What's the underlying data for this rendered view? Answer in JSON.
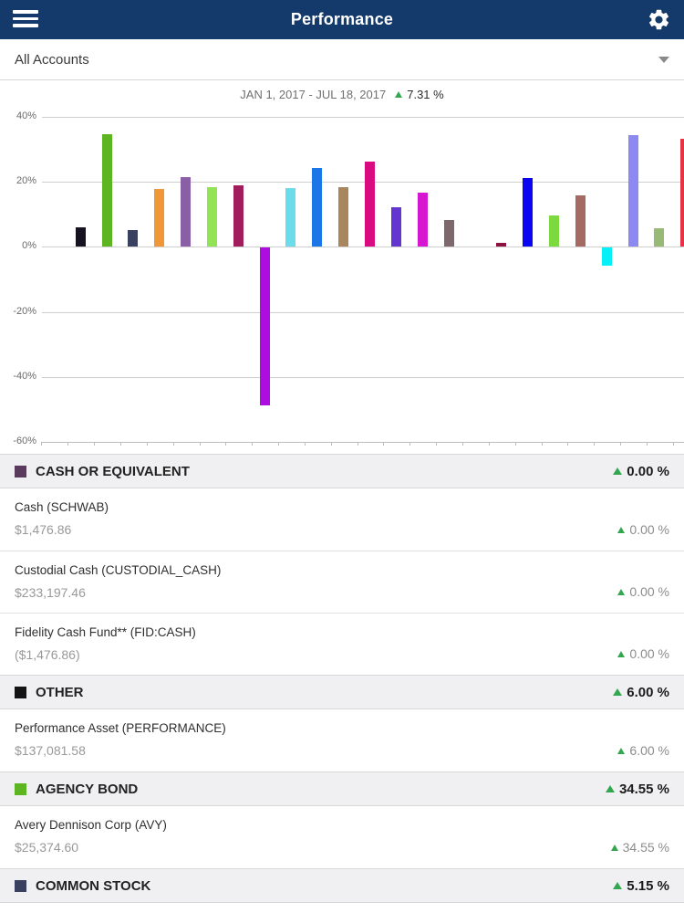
{
  "header": {
    "title": "Performance"
  },
  "account_selector": {
    "label": "All Accounts"
  },
  "chart_data": {
    "type": "bar",
    "title": "JAN 1, 2017 - JUL 18, 2017",
    "change_value": "7.31 %",
    "change_direction": "up",
    "ylabel_ticks": [
      "40%",
      "20%",
      "0%",
      "-20%",
      "-40%",
      "-60%"
    ],
    "ylim": [
      -60,
      40
    ],
    "grid": true,
    "unit": "percent",
    "bars": [
      {
        "value": 0,
        "color": "#5a3b5e",
        "label": "CASH OR EQUIVALENT"
      },
      {
        "value": 6.0,
        "color": "#171221",
        "label": "OTHER"
      },
      {
        "value": 34.55,
        "color": "#5cb521",
        "label": "AGENCY BOND"
      },
      {
        "value": 5.15,
        "color": "#3a4160",
        "label": "COMMON STOCK"
      },
      {
        "value": 17.7,
        "color": "#f0973a"
      },
      {
        "value": 21.6,
        "color": "#8a5fa5"
      },
      {
        "value": 18.5,
        "color": "#93e455"
      },
      {
        "value": 18.9,
        "color": "#a11d5c"
      },
      {
        "value": -48.5,
        "color": "#ad0edf"
      },
      {
        "value": 18.0,
        "color": "#6cdbea"
      },
      {
        "value": 24.3,
        "color": "#1d76e8"
      },
      {
        "value": 18.5,
        "color": "#a8875f"
      },
      {
        "value": 26.2,
        "color": "#da0b80"
      },
      {
        "value": 12.1,
        "color": "#6337cf"
      },
      {
        "value": 16.6,
        "color": "#d517d0"
      },
      {
        "value": 8.2,
        "color": "#7d686e"
      },
      {
        "value": 0,
        "color": "#999999"
      },
      {
        "value": 1.1,
        "color": "#8e1240"
      },
      {
        "value": 21.1,
        "color": "#0b06f2"
      },
      {
        "value": 9.6,
        "color": "#7cd93f"
      },
      {
        "value": 15.8,
        "color": "#a56b62"
      },
      {
        "value": -5.4,
        "color": "#06f0f8"
      },
      {
        "value": 34.5,
        "color": "#8c8af0"
      },
      {
        "value": 5.6,
        "color": "#99ba77"
      },
      {
        "value": 33.3,
        "color": "#e73348",
        "partial_visible": true
      }
    ]
  },
  "sections": [
    {
      "label": "CASH OR EQUIVALENT",
      "legend_color": "#5a3b5e",
      "change": "0.00 %",
      "change_direction": "up",
      "rows": [
        {
          "name": "Cash (SCHWAB)",
          "value": "$1,476.86",
          "change": "0.00 %",
          "change_direction": "up"
        },
        {
          "name": "Custodial Cash (CUSTODIAL_CASH)",
          "value": "$233,197.46",
          "change": "0.00 %",
          "change_direction": "up"
        },
        {
          "name": "Fidelity Cash Fund** (FID:CASH)",
          "value": "($1,476.86)",
          "change": "0.00 %",
          "change_direction": "up"
        }
      ]
    },
    {
      "label": "OTHER",
      "legend_color": "#141414",
      "change": "6.00 %",
      "change_direction": "up",
      "rows": [
        {
          "name": "Performance Asset (PERFORMANCE)",
          "value": "$137,081.58",
          "change": "6.00 %",
          "change_direction": "up"
        }
      ]
    },
    {
      "label": "AGENCY BOND",
      "legend_color": "#5cb521",
      "change": "34.55 %",
      "change_direction": "up",
      "rows": [
        {
          "name": "Avery Dennison Corp (AVY)",
          "value": "$25,374.60",
          "change": "34.55 %",
          "change_direction": "up"
        }
      ]
    },
    {
      "label": "COMMON STOCK",
      "legend_color": "#3a4160",
      "change": "5.15 %",
      "change_direction": "up",
      "rows": []
    }
  ]
}
